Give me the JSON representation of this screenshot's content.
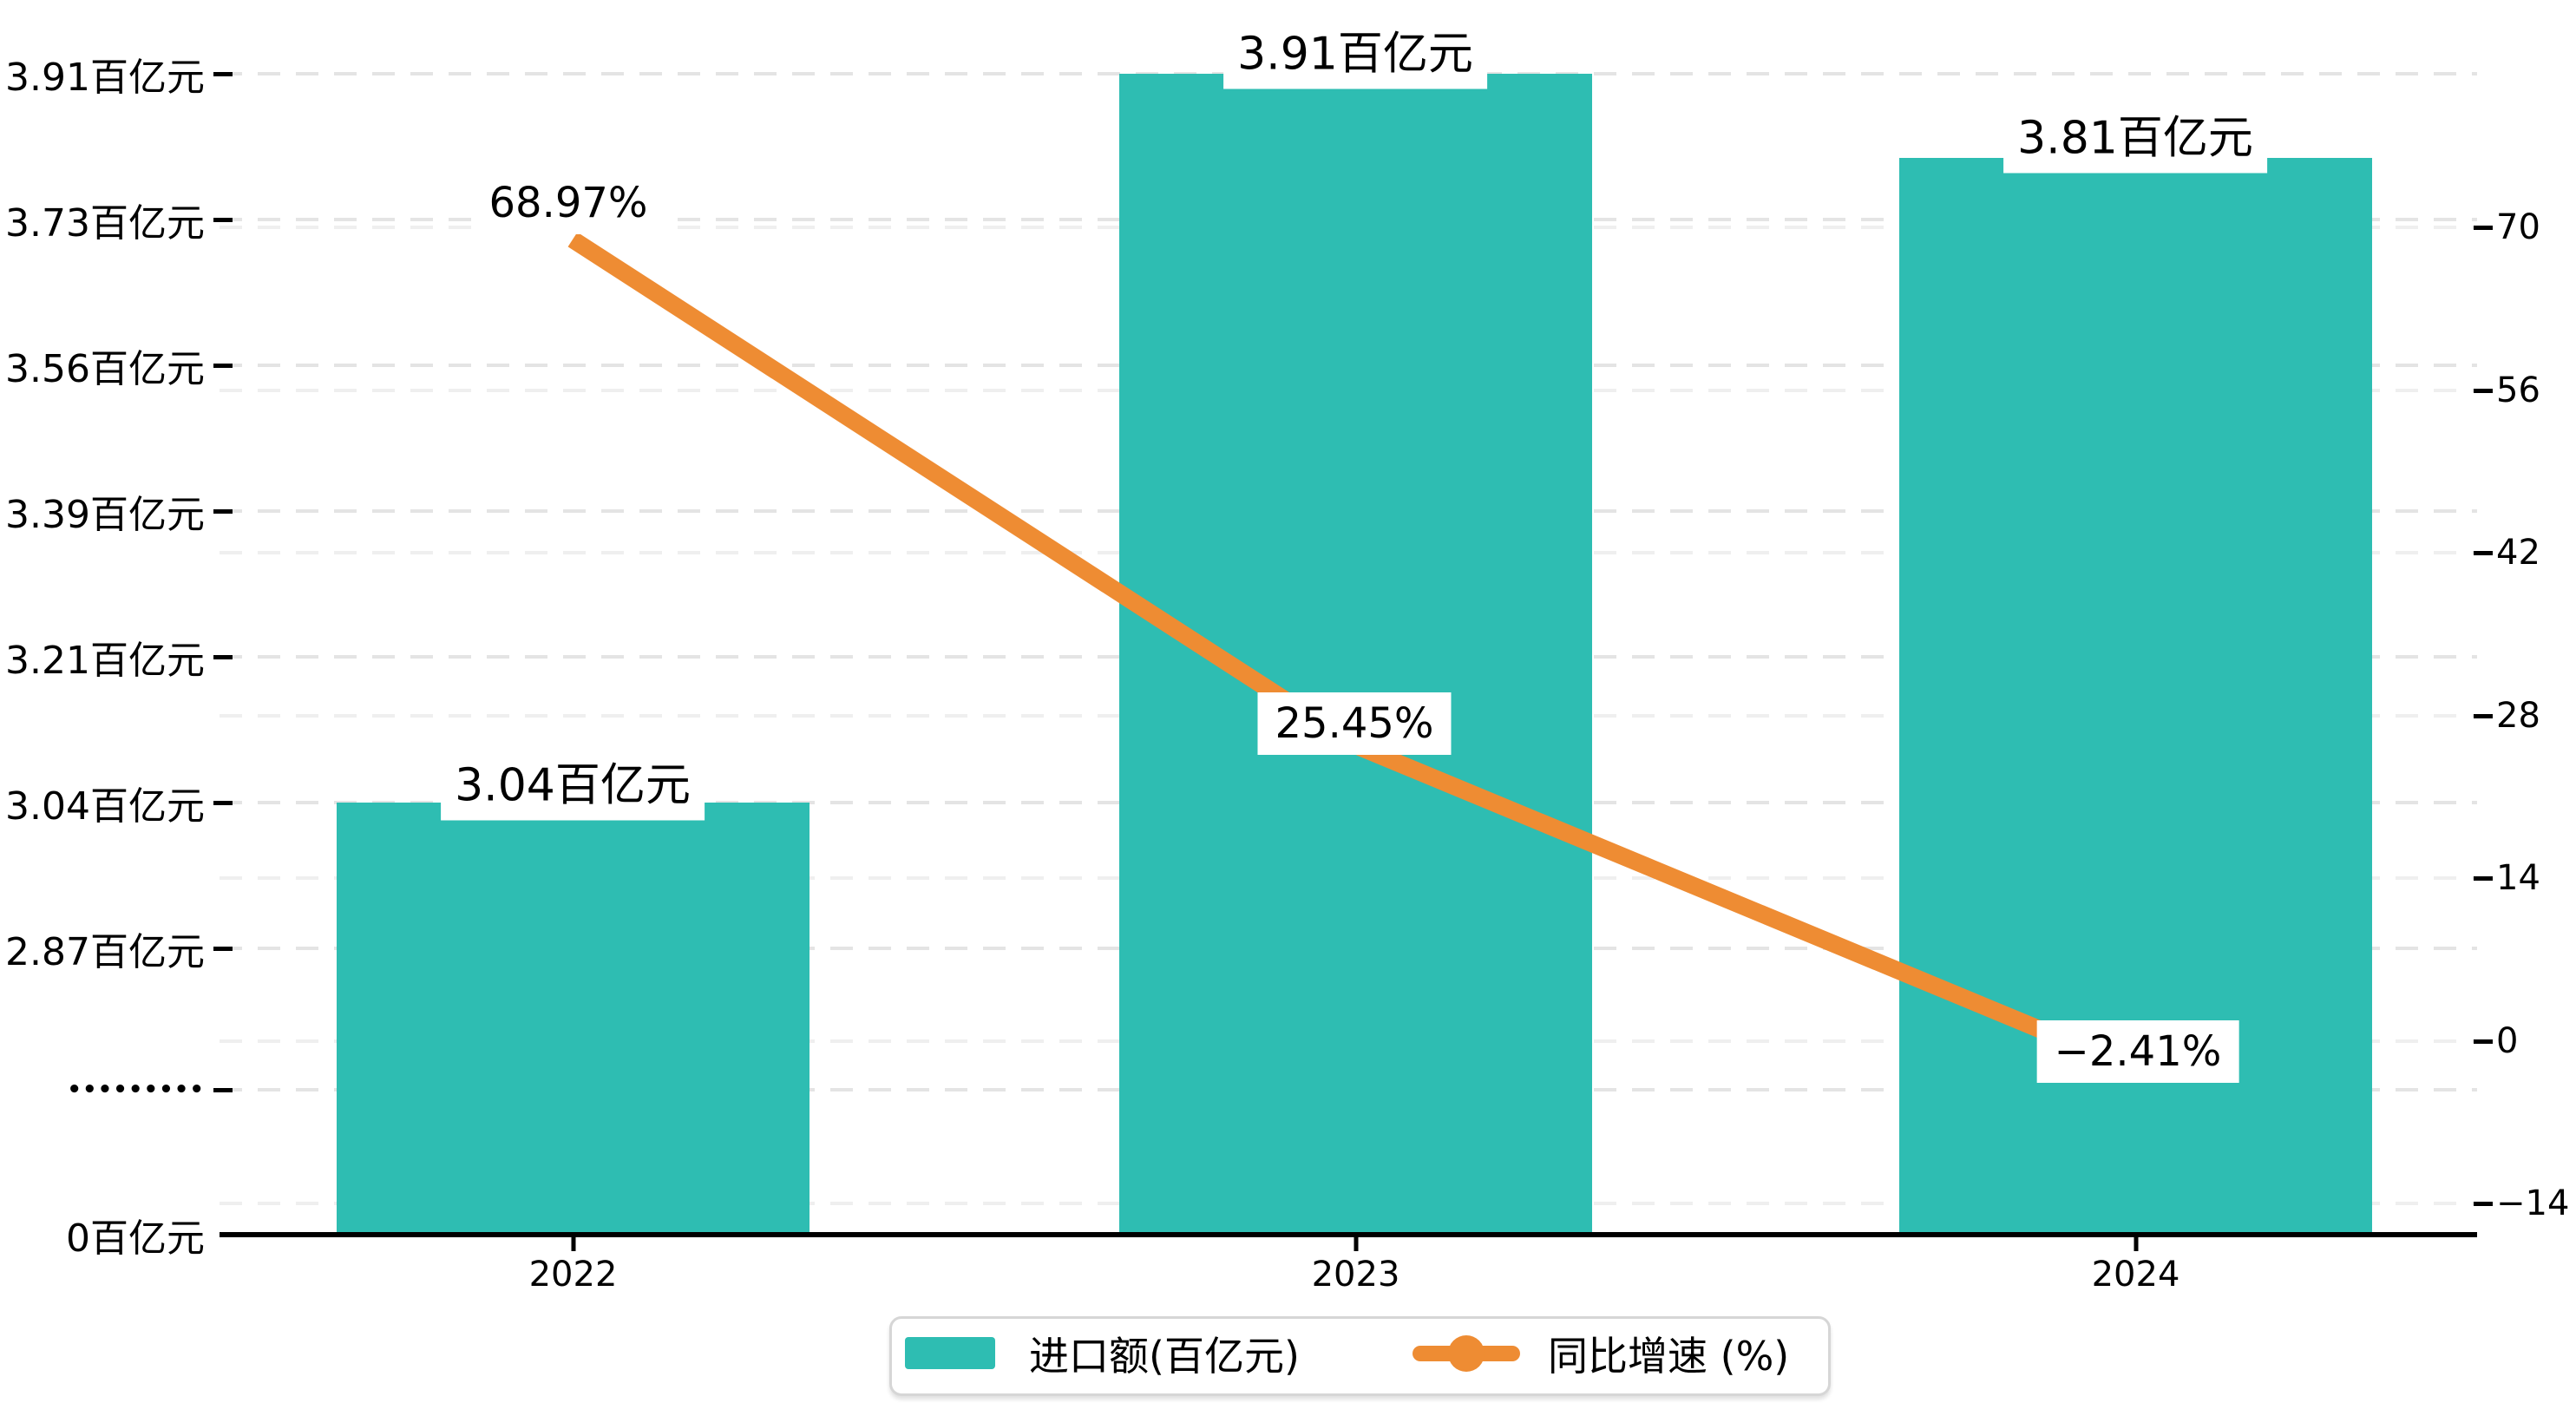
{
  "chart_data": {
    "type": "bar",
    "combo": "bar+line dual axis",
    "categories": [
      "2022",
      "2023",
      "2024"
    ],
    "series": [
      {
        "name": "进口额(百亿元)",
        "type": "bar",
        "values": [
          3.04,
          3.91,
          3.81
        ],
        "unit": "百亿元",
        "color": "#2ebdb2",
        "labels": [
          "3.04百亿元",
          "3.91百亿元",
          "3.81百亿元"
        ],
        "axis": "left"
      },
      {
        "name": "同比增速 (%)",
        "type": "line",
        "values": [
          68.97,
          25.45,
          -2.41
        ],
        "unit": "%",
        "color": "#ee8c33",
        "labels": [
          "68.97%",
          "25.45%",
          "−2.41%"
        ],
        "axis": "right"
      }
    ],
    "left_axis": {
      "tick_labels": [
        "3.91百亿元",
        "3.73百亿元",
        "3.56百亿元",
        "3.39百亿元",
        "3.21百亿元",
        "3.04百亿元",
        "2.87百亿元",
        "•••••••••",
        "0百亿元"
      ],
      "broken_axis": true,
      "break_marker": "•••••••••",
      "min": 0
    },
    "right_axis": {
      "tick_labels": [
        "70",
        "56",
        "42",
        "28",
        "14",
        "0",
        "−14"
      ],
      "min": -14,
      "max": 70,
      "step": 14
    },
    "legend": [
      "进口额(百亿元)",
      "同比增速 (%)"
    ],
    "legend_position": "bottom-center",
    "grid": true,
    "gridline_style": "dashed",
    "title": "",
    "colors": {
      "bar": "#2ebdb2",
      "line": "#ee8c33",
      "axis": "#000000",
      "gridline_left": "#e4e4e4",
      "gridline_right": "#efefef",
      "label_background": "#ffffff",
      "legend_border": "#d6d6d6"
    }
  }
}
